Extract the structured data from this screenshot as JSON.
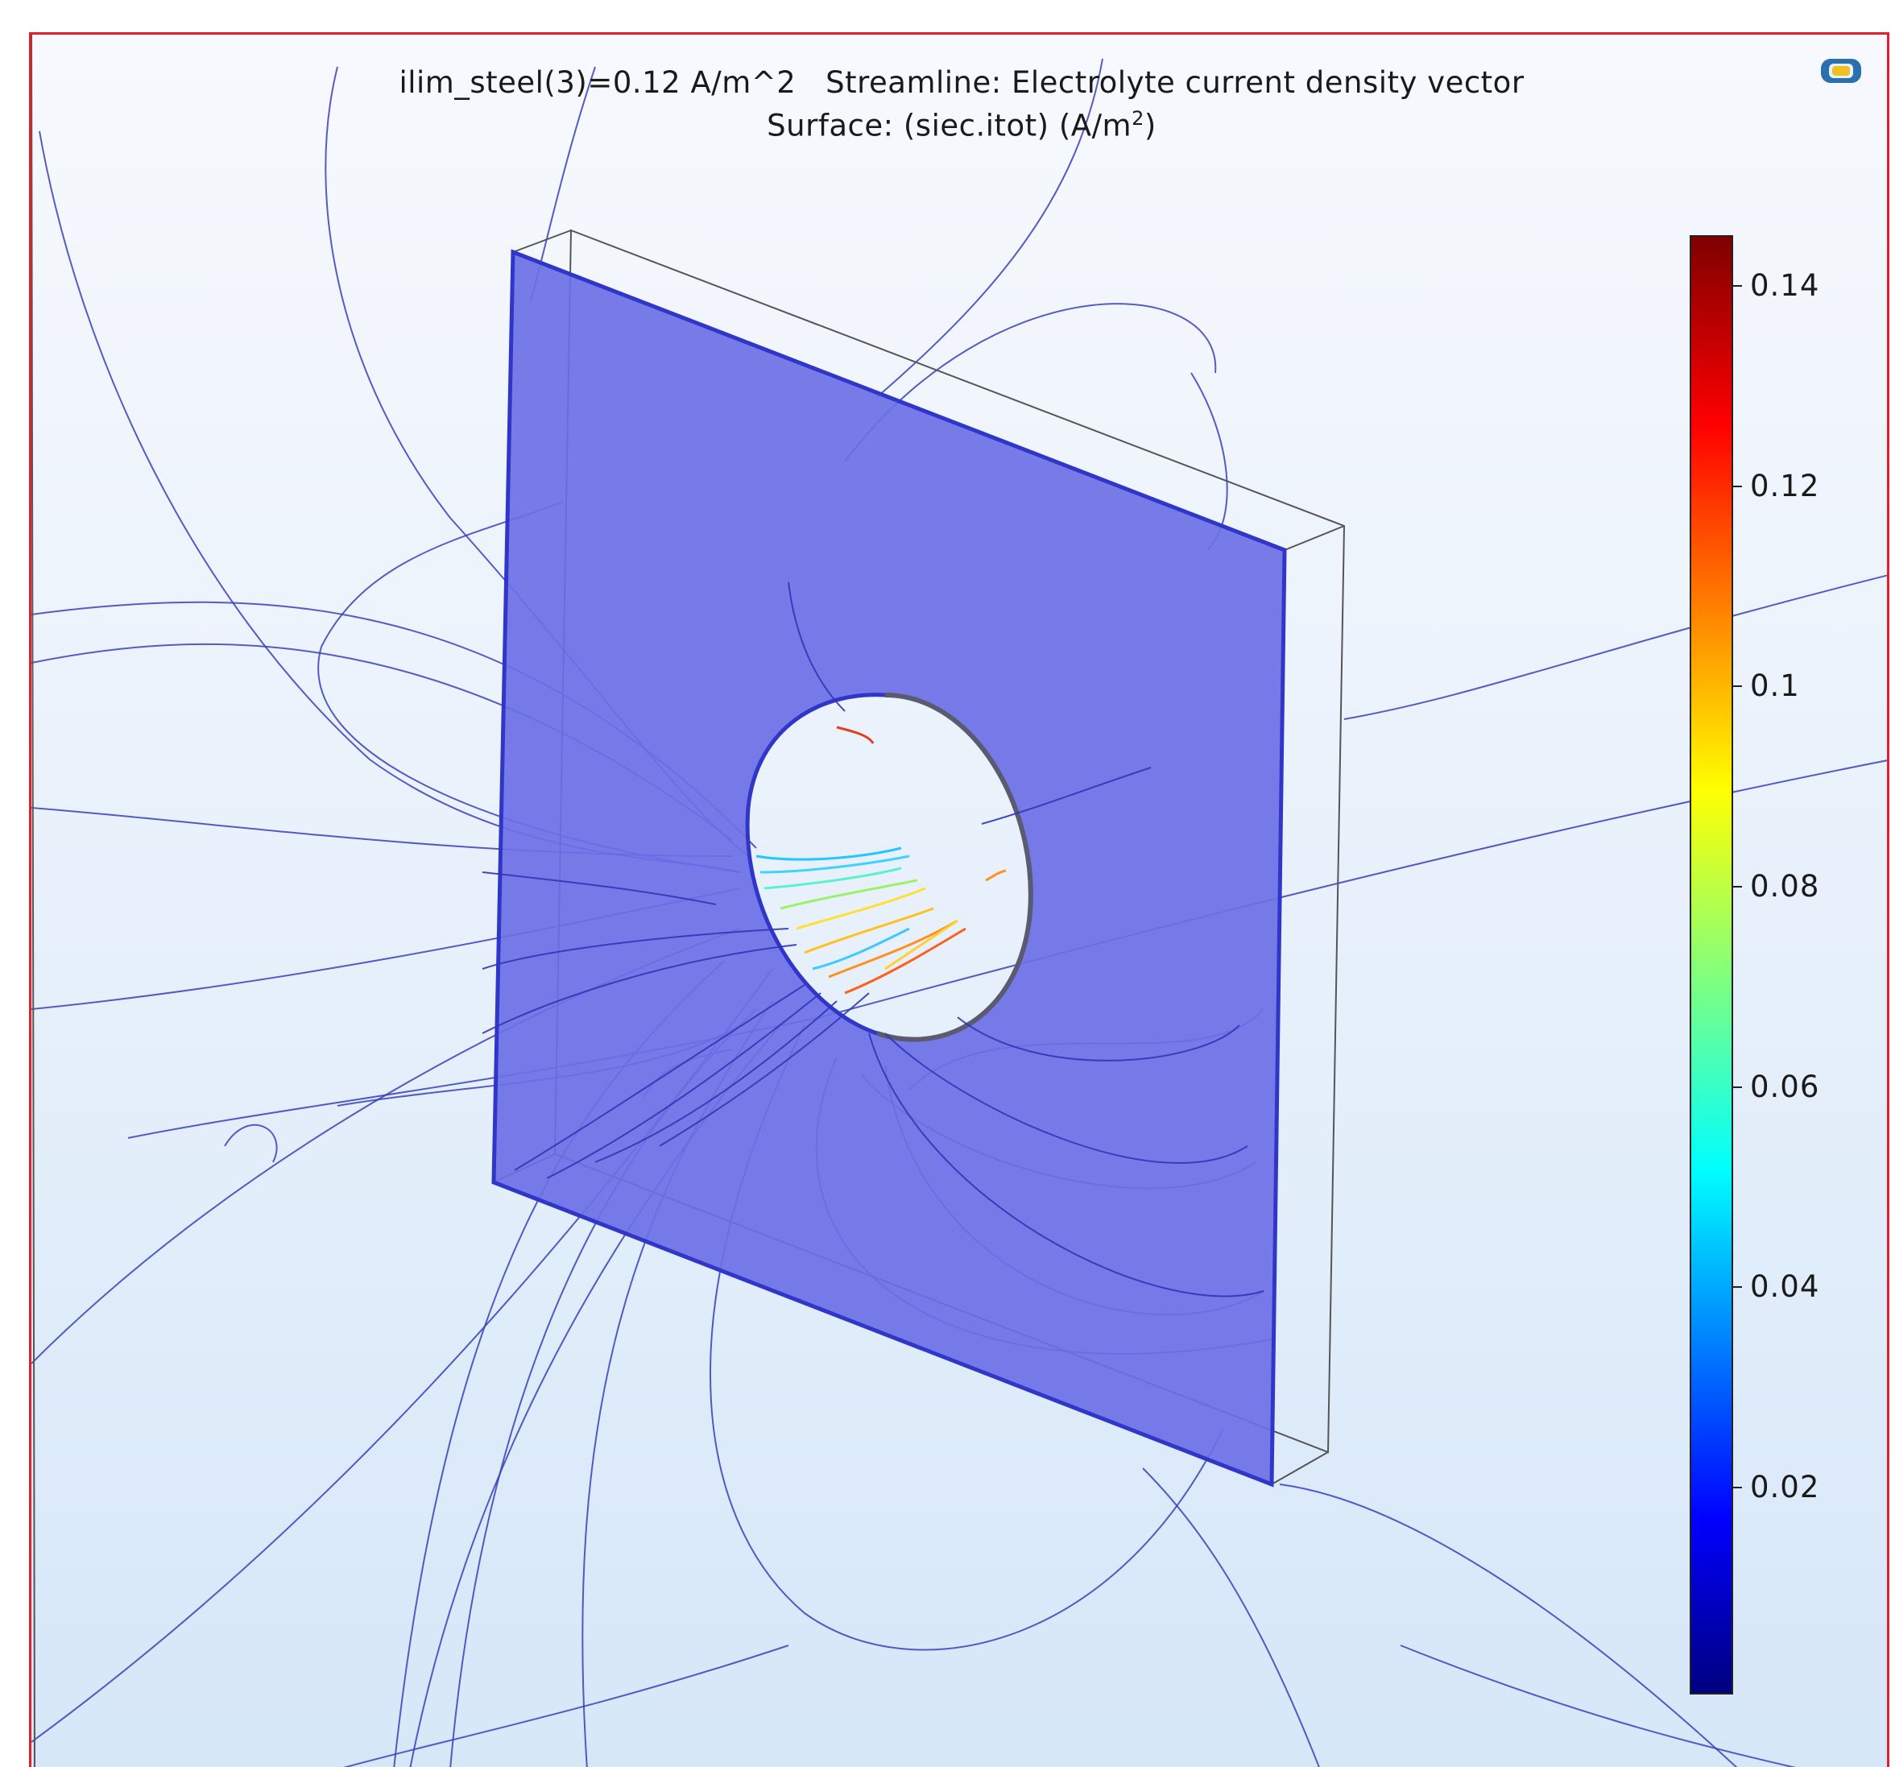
{
  "plot": {
    "title_line1": "ilim_steel(3)=0.12 A/m^2   Streamline: Electrolyte current density vector",
    "title_line2_prefix": "Surface: (siec.itot) (A/m",
    "title_line2_sup": "2",
    "title_line2_suffix": ")"
  },
  "colorbar": {
    "ticks": [
      "0.14",
      "0.12",
      "0.1",
      "0.08",
      "0.06",
      "0.04",
      "0.02"
    ],
    "colormap": "jet",
    "range": [
      0.0,
      0.145
    ]
  },
  "toolbar": {
    "view_icon": "camera-view-icon"
  },
  "colors": {
    "border": "#e0202a",
    "plate_fill": "#6b70e6",
    "streamline": "#3a3fb8",
    "outline": "#555555"
  }
}
